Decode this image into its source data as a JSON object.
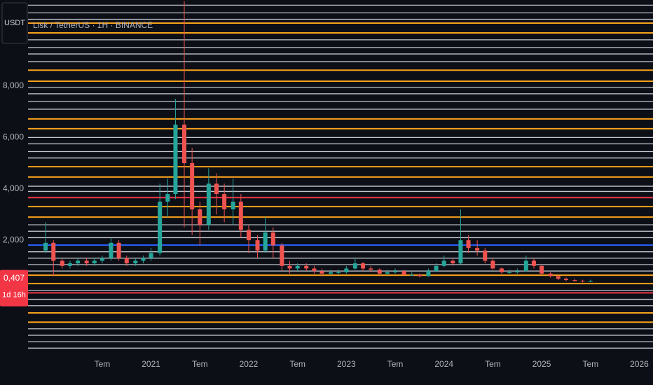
{
  "chart_data": {
    "type": "candlestick",
    "title": "Lisk / TetherUS · 1H · BINANCE",
    "currency": "USDT",
    "last_price": 0.407,
    "last_price_label": "0,407",
    "countdown": "1d 16h",
    "up_color": "#26a69a",
    "down_color": "#ef5350",
    "xlim": [
      2019.74,
      2026.14
    ],
    "ylim": [
      -2.41,
      11.35
    ],
    "xticks": [
      {
        "value": 2020.5,
        "label": "Tem"
      },
      2021,
      {
        "value": 2021.5,
        "label": "Tem"
      },
      2022,
      {
        "value": 2022.5,
        "label": "Tem"
      },
      2023,
      {
        "value": 2023.5,
        "label": "Tem"
      },
      2024,
      {
        "value": 2024.5,
        "label": "Tem"
      },
      2025,
      {
        "value": 2025.5,
        "label": "Tem"
      },
      2026
    ],
    "yticks": [
      {
        "value": 2,
        "label": "2,000"
      },
      {
        "value": 4,
        "label": "4,000"
      },
      {
        "value": 6,
        "label": "6,000"
      },
      {
        "value": 8,
        "label": "8,000"
      }
    ],
    "levels": [
      {
        "color": "#c3c6ce",
        "values": [
          11.15,
          10.85,
          10.6,
          9.8,
          9.5,
          9.25,
          8.95,
          7.95,
          7.7,
          7.4,
          7.1,
          6.0,
          5.75,
          5.45,
          5.2,
          4.1,
          3.9,
          2.6,
          2.35,
          2.1,
          1.55,
          1.3,
          1.05,
          0.8,
          0.05,
          -0.3,
          -0.55,
          -1.45,
          -1.7,
          -1.95,
          -2.2
        ]
      },
      {
        "color": "#f7a21b",
        "values": [
          10.45,
          10.07,
          8.62,
          8.19,
          6.72,
          6.34,
          4.86,
          4.46,
          3.31,
          2.9,
          0.64,
          0.31,
          -0.83,
          -1.19
        ]
      },
      {
        "color": "#f23645",
        "values": [
          3.66,
          -0.05
        ]
      },
      {
        "color": "#2962ff",
        "values": [
          1.81
        ]
      }
    ],
    "x": [
      2019.92,
      2020.0,
      2020.09,
      2020.17,
      2020.25,
      2020.34,
      2020.42,
      2020.5,
      2020.59,
      2020.67,
      2020.75,
      2020.84,
      2020.92,
      2021.0,
      2021.09,
      2021.17,
      2021.25,
      2021.34,
      2021.42,
      2021.5,
      2021.59,
      2021.67,
      2021.75,
      2021.84,
      2021.92,
      2022.0,
      2022.09,
      2022.17,
      2022.25,
      2022.34,
      2022.42,
      2022.5,
      2022.59,
      2022.67,
      2022.75,
      2022.84,
      2022.92,
      2023.0,
      2023.09,
      2023.17,
      2023.25,
      2023.34,
      2023.42,
      2023.5,
      2023.59,
      2023.67,
      2023.75,
      2023.84,
      2023.92,
      2024.0,
      2024.09,
      2024.17,
      2024.25,
      2024.34,
      2024.42,
      2024.5,
      2024.59,
      2024.67,
      2024.75,
      2024.84,
      2024.92,
      2025.0,
      2025.09,
      2025.17,
      2025.25,
      2025.34,
      2025.42,
      2025.5
    ],
    "open": [
      1.6,
      1.9,
      1.2,
      1.0,
      1.1,
      1.2,
      1.1,
      1.2,
      1.3,
      1.9,
      1.3,
      1.1,
      1.2,
      1.3,
      1.5,
      3.5,
      3.8,
      6.5,
      5.0,
      3.2,
      2.6,
      4.2,
      3.8,
      3.2,
      3.5,
      2.4,
      2.0,
      1.6,
      2.3,
      1.8,
      1.0,
      0.9,
      1.0,
      0.9,
      0.8,
      0.7,
      0.75,
      0.75,
      0.9,
      1.1,
      0.9,
      0.85,
      0.7,
      0.75,
      0.8,
      0.65,
      0.65,
      0.6,
      0.8,
      1.0,
      1.2,
      1.1,
      2.0,
      1.7,
      1.6,
      1.2,
      0.9,
      0.75,
      0.75,
      0.8,
      1.2,
      1.0,
      0.7,
      0.6,
      0.5,
      0.45,
      0.42,
      0.4
    ],
    "high": [
      2.7,
      2.0,
      1.3,
      1.2,
      1.3,
      1.3,
      1.3,
      1.4,
      2.1,
      2.0,
      1.4,
      1.3,
      1.4,
      1.7,
      4.2,
      4.4,
      7.5,
      11.3,
      5.6,
      3.5,
      4.8,
      4.6,
      4.2,
      4.4,
      3.8,
      2.6,
      2.2,
      2.9,
      2.5,
      1.9,
      1.2,
      1.1,
      1.1,
      1.0,
      0.9,
      0.85,
      0.85,
      1.0,
      1.3,
      1.15,
      1.0,
      0.9,
      0.85,
      0.9,
      0.85,
      0.75,
      0.7,
      0.9,
      1.1,
      1.4,
      1.3,
      3.2,
      2.2,
      2.0,
      1.7,
      1.3,
      0.95,
      0.85,
      0.9,
      1.4,
      1.3,
      1.05,
      0.75,
      0.65,
      0.55,
      0.5,
      0.46,
      0.46
    ],
    "low": [
      1.5,
      0.6,
      0.9,
      0.9,
      1.0,
      1.0,
      1.0,
      1.1,
      1.2,
      1.2,
      1.0,
      1.0,
      1.1,
      1.2,
      1.4,
      2.9,
      3.6,
      2.5,
      2.2,
      1.8,
      2.4,
      3.0,
      2.7,
      2.6,
      2.1,
      1.5,
      1.3,
      1.5,
      1.3,
      0.8,
      0.7,
      0.8,
      0.8,
      0.7,
      0.6,
      0.65,
      0.65,
      0.7,
      0.85,
      0.8,
      0.75,
      0.65,
      0.65,
      0.7,
      0.6,
      0.6,
      0.55,
      0.58,
      0.75,
      0.95,
      1.0,
      1.05,
      1.5,
      1.4,
      1.1,
      0.85,
      0.7,
      0.7,
      0.7,
      0.78,
      0.9,
      0.65,
      0.55,
      0.45,
      0.4,
      0.38,
      0.36,
      0.37
    ],
    "close": [
      1.9,
      1.2,
      1.0,
      1.1,
      1.2,
      1.1,
      1.2,
      1.3,
      1.9,
      1.3,
      1.1,
      1.2,
      1.3,
      1.5,
      3.5,
      3.8,
      6.5,
      5.0,
      3.2,
      2.6,
      4.2,
      3.8,
      3.2,
      3.5,
      2.4,
      2.0,
      1.6,
      2.3,
      1.8,
      1.0,
      0.9,
      1.0,
      0.9,
      0.8,
      0.7,
      0.75,
      0.75,
      0.9,
      1.1,
      0.9,
      0.85,
      0.7,
      0.75,
      0.8,
      0.65,
      0.65,
      0.6,
      0.8,
      1.0,
      1.2,
      1.1,
      2.0,
      1.7,
      1.6,
      1.2,
      0.9,
      0.75,
      0.75,
      0.8,
      1.2,
      1.0,
      0.7,
      0.6,
      0.5,
      0.45,
      0.42,
      0.4,
      0.407
    ]
  }
}
